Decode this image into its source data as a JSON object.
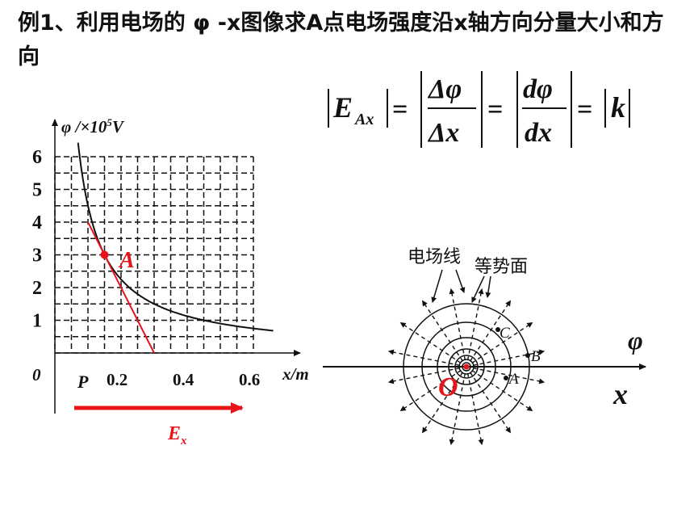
{
  "title": "例1、利用电场的 φ -x图像求A点电场强度沿x轴方向分量大小和方向",
  "formula": {
    "lhs": "E",
    "lhs_sub": "Ax",
    "frac1_num": "Δφ",
    "frac1_den": "Δx",
    "frac2_num": "dφ",
    "frac2_den": "dx",
    "rhs": "k"
  },
  "graph": {
    "y_axis_label": "φ /×10",
    "y_axis_exp": "5",
    "y_axis_unit": "V",
    "x_axis_label": "x/m",
    "origin_label": "0",
    "y_ticks": [
      "1",
      "2",
      "3",
      "4",
      "5",
      "6"
    ],
    "x_ticks": [
      "0.2",
      "0.4",
      "0.6"
    ],
    "point_label": "A",
    "p_label": "P",
    "field_label": "E",
    "field_sub": "x",
    "curve_color": "#111111",
    "accent_color": "#e8141b"
  },
  "chart_data": {
    "type": "line",
    "xlabel": "x/m",
    "ylabel": "φ /×10^5 V",
    "xlim": [
      0,
      0.7
    ],
    "ylim": [
      0,
      6.5
    ],
    "x_ticks": [
      0.2,
      0.4,
      0.6
    ],
    "y_ticks": [
      1,
      2,
      3,
      4,
      5,
      6
    ],
    "grid": true,
    "series": [
      {
        "x": [
          0.07,
          0.1,
          0.15,
          0.2,
          0.25,
          0.3,
          0.4,
          0.5,
          0.6,
          0.66
        ],
        "y": [
          6.5,
          4.5,
          3.0,
          2.25,
          1.8,
          1.5,
          1.13,
          0.9,
          0.75,
          0.68
        ]
      }
    ],
    "point": {
      "label": "A",
      "x": 0.15,
      "y": 3.0
    },
    "tangent": {
      "x": [
        0.1,
        0.3
      ],
      "y": [
        4.0,
        0.0
      ]
    }
  },
  "field_diagram": {
    "field_line_label": "电场线",
    "equipotential_label": "等势面",
    "labels": [
      "C",
      "B",
      "A"
    ],
    "origin_label": "O",
    "phi_axis_label": "φ",
    "x_axis_label": "x"
  }
}
